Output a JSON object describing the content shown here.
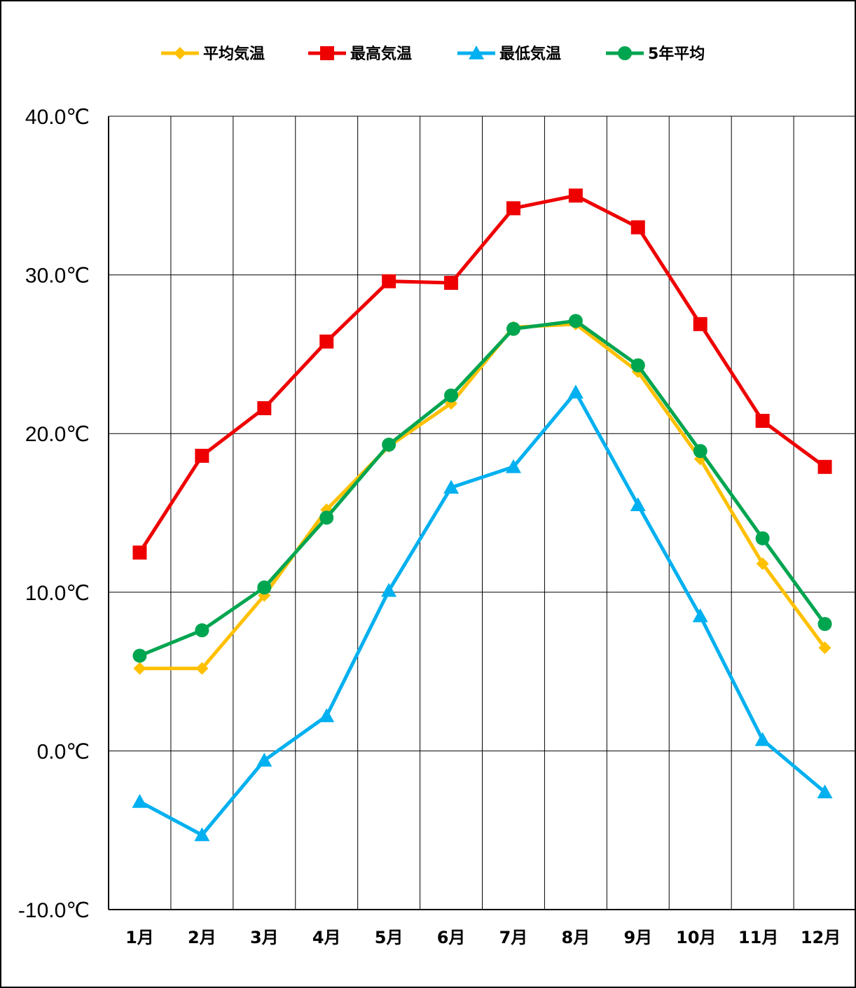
{
  "chart_data": {
    "type": "line",
    "categories": [
      "1月",
      "2月",
      "3月",
      "4月",
      "5月",
      "6月",
      "7月",
      "8月",
      "9月",
      "10月",
      "11月",
      "12月"
    ],
    "series": [
      {
        "name": "平均気温",
        "color": "#FFC000",
        "marker": "diamond",
        "values": [
          5.2,
          5.2,
          9.8,
          15.2,
          19.2,
          21.9,
          26.7,
          26.9,
          23.9,
          18.4,
          11.8,
          6.5
        ]
      },
      {
        "name": "最高気温",
        "color": "#EE0000",
        "marker": "square",
        "values": [
          12.5,
          18.6,
          21.6,
          25.8,
          29.6,
          29.5,
          34.2,
          35.0,
          33.0,
          26.9,
          20.8,
          17.9
        ]
      },
      {
        "name": "最低気温",
        "color": "#00B0F0",
        "marker": "triangle",
        "values": [
          -3.2,
          -5.3,
          -0.6,
          2.2,
          10.1,
          16.6,
          17.9,
          22.6,
          15.5,
          8.5,
          0.7,
          -2.6
        ]
      },
      {
        "name": "5年平均",
        "color": "#00A550",
        "marker": "circle",
        "values": [
          6.0,
          7.6,
          10.3,
          14.7,
          19.3,
          22.4,
          26.6,
          27.1,
          24.3,
          18.9,
          13.4,
          8.0
        ]
      }
    ],
    "yticks": [
      "-10.0℃",
      "0.0℃",
      "10.0℃",
      "20.0℃",
      "30.0℃",
      "40.0℃"
    ],
    "ylim": [
      -10,
      40
    ],
    "grid": true,
    "legend_position": "top"
  }
}
